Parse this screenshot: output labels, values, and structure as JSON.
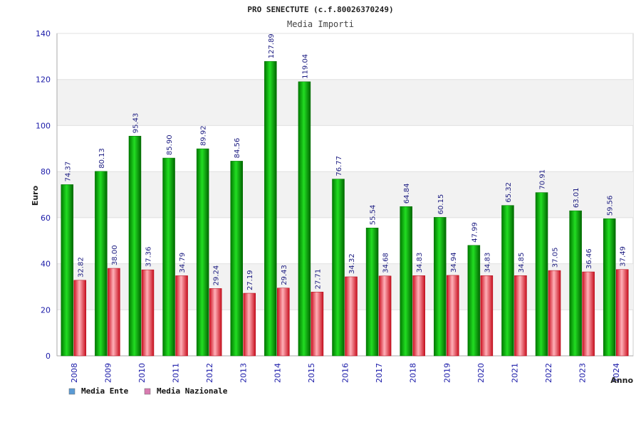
{
  "chart_data": {
    "type": "bar",
    "title": "PRO SENECTUTE (c.f.80026370249)",
    "subtitle": "Media Importi",
    "xlabel": "Anno",
    "ylabel": "Euro",
    "ylim": [
      0,
      140
    ],
    "yticks": [
      0,
      20,
      40,
      60,
      80,
      100,
      120,
      140
    ],
    "grid": "horizontal bands",
    "legend_position": "bottom-left",
    "categories": [
      "2008",
      "2009",
      "2010",
      "2011",
      "2012",
      "2013",
      "2014",
      "2015",
      "2016",
      "2017",
      "2018",
      "2019",
      "2020",
      "2021",
      "2022",
      "2023",
      "2024"
    ],
    "series": [
      {
        "name": "Media Ente",
        "color": "#00bb00",
        "legend_color": "#5b9bd5",
        "values": [
          74.37,
          80.13,
          95.43,
          85.9,
          89.92,
          84.56,
          127.89,
          119.04,
          76.77,
          55.54,
          64.84,
          60.15,
          47.99,
          65.32,
          70.91,
          63.01,
          59.56
        ],
        "labels": [
          "74.37",
          "80.13",
          "95.43",
          "85.90",
          "89.92",
          "84.56",
          "127.89",
          "119.04",
          "76.77",
          "55.54",
          "64.84",
          "60.15",
          "47.99",
          "65.32",
          "70.91",
          "63.01",
          "59.56"
        ]
      },
      {
        "name": "Media Nazionale",
        "color": "#e8202a",
        "legend_color": "#d97bb0",
        "values": [
          32.82,
          38.0,
          37.36,
          34.79,
          29.24,
          27.19,
          29.43,
          27.71,
          34.32,
          34.68,
          34.83,
          34.94,
          34.83,
          34.85,
          37.05,
          36.46,
          37.49
        ],
        "labels": [
          "32.82",
          "38.00",
          "37.36",
          "34.79",
          "29.24",
          "27.19",
          "29.43",
          "27.71",
          "34.32",
          "34.68",
          "34.83",
          "34.94",
          "34.83",
          "34.85",
          "37.05",
          "36.46",
          "37.49"
        ]
      }
    ]
  }
}
